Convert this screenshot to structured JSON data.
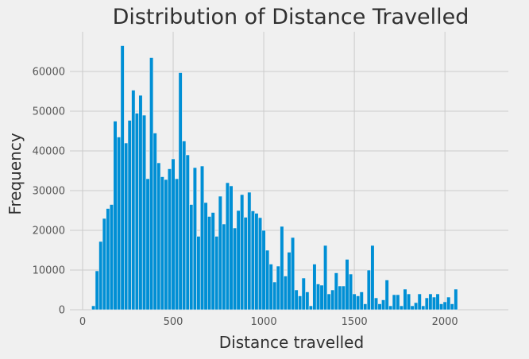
{
  "chart_data": {
    "type": "bar",
    "title": "Distribution of Distance Travelled",
    "xlabel": "Distance travelled",
    "ylabel": "Frequency",
    "xlim": [
      -70,
      2350
    ],
    "ylim": [
      0,
      70000
    ],
    "xticks": [
      0,
      500,
      1000,
      1500,
      2000
    ],
    "yticks": [
      0,
      10000,
      20000,
      30000,
      40000,
      50000,
      60000
    ],
    "grid": true,
    "colors": {
      "bar": "#008fd5",
      "background": "#f0f0f0",
      "grid": "#cbcbcb"
    },
    "bin_start": 50,
    "bin_width": 20,
    "values": [
      1000,
      9800,
      17200,
      23000,
      25500,
      26500,
      47500,
      43500,
      66500,
      42000,
      47700,
      55300,
      49500,
      54000,
      49000,
      33000,
      63500,
      44500,
      37000,
      33500,
      32800,
      35500,
      38000,
      33000,
      59700,
      42500,
      39000,
      26500,
      35800,
      18500,
      36200,
      27000,
      23500,
      24500,
      18500,
      28600,
      21600,
      32000,
      31200,
      20600,
      25000,
      29000,
      23300,
      29600,
      24900,
      24300,
      23200,
      20000,
      15000,
      11500,
      7000,
      11000,
      21000,
      8500,
      14500,
      18200,
      5000,
      3500,
      8000,
      4500,
      1000,
      11500,
      6500,
      6200,
      16200,
      4000,
      5000,
      9300,
      6000,
      6000,
      12700,
      9000,
      4000,
      3500,
      4500,
      1500,
      10000,
      16200,
      3000,
      1500,
      2500,
      7500,
      1000,
      3800,
      3800,
      1000,
      5200,
      4000,
      1000,
      1800,
      4000,
      1000,
      3000,
      4000,
      3200,
      4000,
      1500,
      2000,
      3200,
      1500,
      5200
    ]
  }
}
